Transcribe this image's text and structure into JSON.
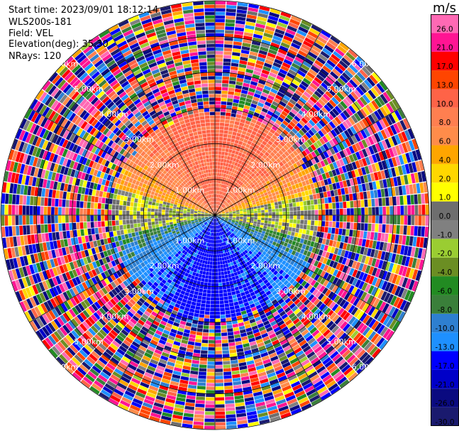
{
  "header": {
    "start_time": "Start time: 2023/09/01 18:12:14",
    "instrument": "WLS200s-181",
    "field": "Field: VEL",
    "elevation": "Elevation(deg): 35.30",
    "nrays": "NRays: 120"
  },
  "chart_data": {
    "type": "heatmap",
    "projection": "polar PPI",
    "field": "VEL",
    "units": "m/s",
    "range_rings_km": [
      1.0,
      2.0,
      3.0,
      4.0,
      5.0,
      6.0
    ],
    "range_ring_labels": [
      "1.00km",
      "2.00km",
      "3.00km",
      "4.00km",
      "5.00km",
      "6.00km"
    ],
    "azimuth_spokes_deg": [
      0,
      30,
      60,
      90,
      120,
      150,
      180,
      210,
      240,
      270,
      300,
      330
    ],
    "valid_data_extent_km": 2.9,
    "velocity_pattern": {
      "north_sector_ms": 11.0,
      "east_west_ms": 0.0,
      "south_sector_ms": -15.0,
      "beyond_extent": "noise"
    },
    "colorbar": {
      "label": "m/s",
      "bounds": [
        -30.0,
        -26.0,
        -21.0,
        -17.0,
        -13.0,
        -10.0,
        -8.0,
        -6.0,
        -4.0,
        -2.0,
        -1.0,
        0.0,
        1.0,
        2.0,
        4.0,
        6.0,
        8.0,
        10.0,
        13.0,
        17.0,
        21.0,
        26.0
      ],
      "tick_labels": [
        "-30.0",
        "-26.0",
        "-21.0",
        "-17.0",
        "-13.0",
        "-10.0",
        "-8.0",
        "-6.0",
        "-4.0",
        "-2.0",
        "-1.0",
        "0.0",
        "1.0",
        "2.0",
        "4.0",
        "6.0",
        "8.0",
        "10.0",
        "13.0",
        "17.0",
        "21.0",
        "26.0"
      ],
      "colors": [
        "#1a1a6e",
        "#0a0a80",
        "#0000c8",
        "#0000ff",
        "#1e90ff",
        "#2e7fd0",
        "#3a7f3a",
        "#228b22",
        "#6b8e23",
        "#9acd32",
        "#808080",
        "#6e6e6e",
        "#ffff00",
        "#ffd700",
        "#ffa500",
        "#ff8c4a",
        "#ff7f50",
        "#ff6347",
        "#ff4500",
        "#ff0000",
        "#ff1493",
        "#ff69b4"
      ]
    }
  }
}
